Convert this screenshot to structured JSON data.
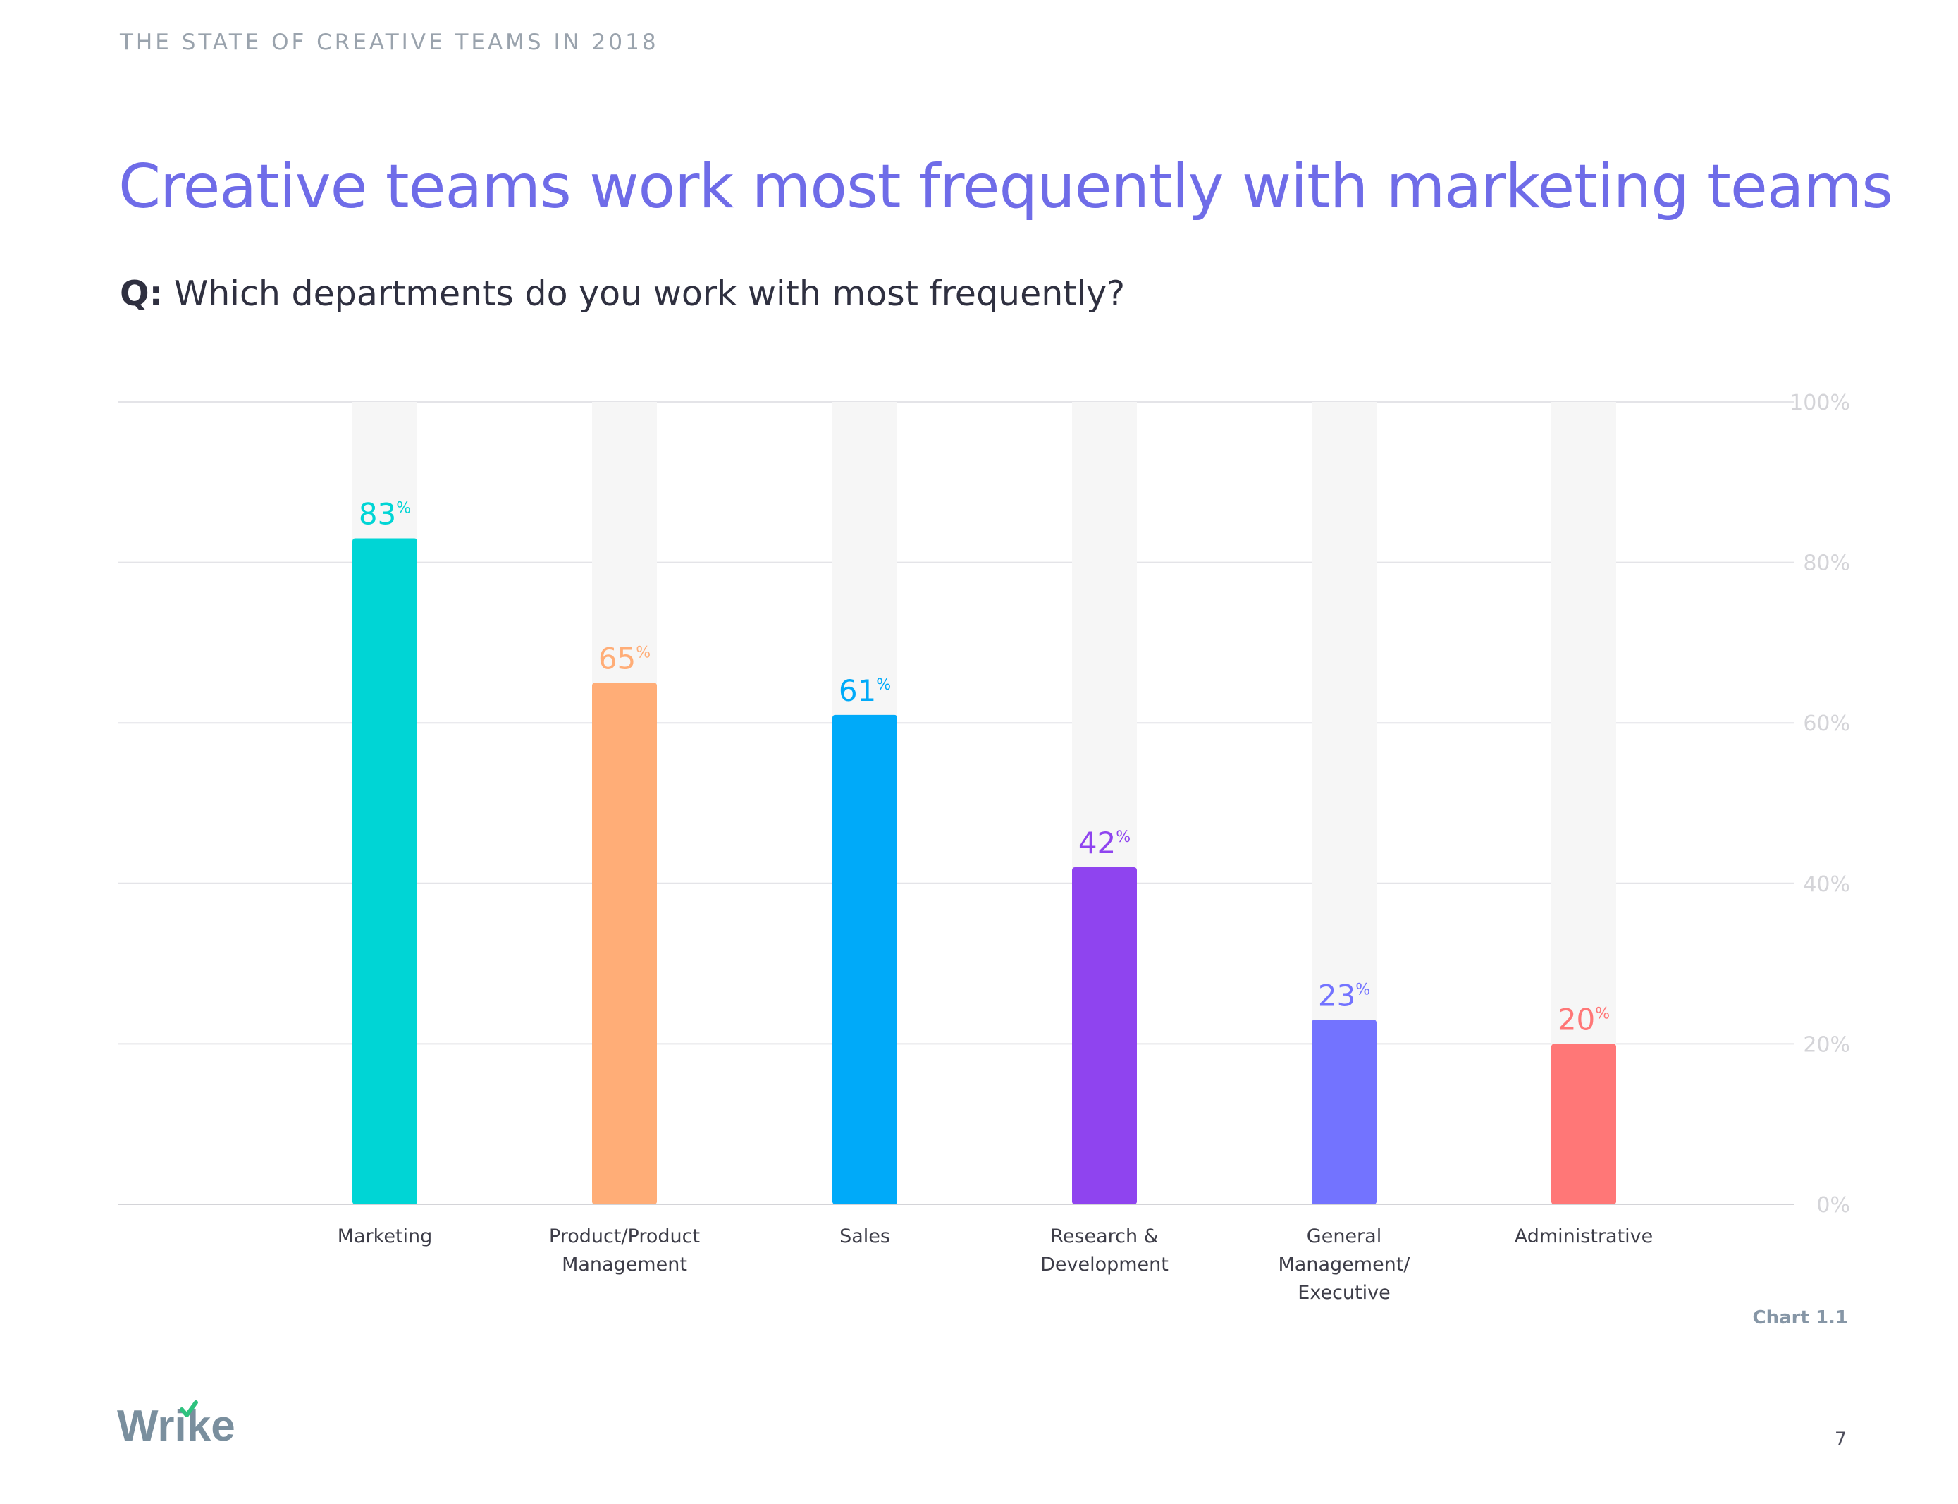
{
  "header": {
    "kicker": "THE STATE OF CREATIVE TEAMS IN 2018"
  },
  "title": "Creative teams work most frequently with marketing teams",
  "question": {
    "prefix": "Q:",
    "text": "Which departments do you work with most frequently?"
  },
  "chart_data": {
    "type": "bar",
    "categories": [
      [
        "Marketing"
      ],
      [
        "Product/Product",
        "Management"
      ],
      [
        "Sales"
      ],
      [
        "Research &",
        "Development"
      ],
      [
        "General",
        "Management/",
        "Executive"
      ],
      [
        "Administrative"
      ]
    ],
    "values": [
      83,
      65,
      61,
      42,
      23,
      20
    ],
    "value_suffix": "%",
    "colors": [
      "#00d5d5",
      "#ffad77",
      "#00aaf9",
      "#8f44ef",
      "#7373ff",
      "#ff7777"
    ],
    "background_track_color": "#f6f6f6",
    "ylim": [
      0,
      100
    ],
    "yticks": [
      "0%",
      "20%",
      "40%",
      "60%",
      "80%",
      "100%"
    ],
    "grid": true,
    "ytick_side": "right"
  },
  "chart_id": "Chart 1.1",
  "logo": {
    "text": "Wrike",
    "color": "#7a8f9e",
    "check_color": "#2ec27e"
  },
  "page_number": "7"
}
